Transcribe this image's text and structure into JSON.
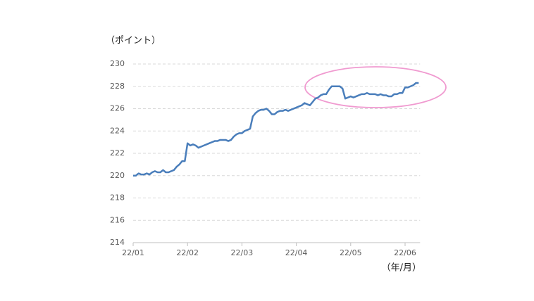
{
  "chart_data": {
    "type": "line",
    "y_label": "（ポイント）",
    "x_label": "（年/月）",
    "categories": [
      "22/01",
      null,
      null,
      null,
      null,
      null,
      null,
      null,
      null,
      null,
      null,
      null,
      null,
      null,
      null,
      null,
      null,
      null,
      null,
      null,
      "22/02",
      null,
      null,
      null,
      null,
      null,
      null,
      null,
      null,
      null,
      null,
      null,
      null,
      null,
      null,
      null,
      null,
      null,
      null,
      null,
      "22/03",
      null,
      null,
      null,
      null,
      null,
      null,
      null,
      null,
      null,
      null,
      null,
      null,
      null,
      null,
      null,
      null,
      null,
      null,
      null,
      "22/04",
      null,
      null,
      null,
      null,
      null,
      null,
      null,
      null,
      null,
      null,
      null,
      null,
      null,
      null,
      null,
      null,
      null,
      null,
      null,
      "22/05",
      null,
      null,
      null,
      null,
      null,
      null,
      null,
      null,
      null,
      null,
      null,
      null,
      null,
      null,
      null,
      null,
      null,
      null,
      null,
      "22/06",
      null,
      null,
      null,
      null,
      null
    ],
    "series": [
      {
        "color": "#4a7ebb",
        "values": [
          220.0,
          220.0,
          220.2,
          220.1,
          220.1,
          220.2,
          220.1,
          220.3,
          220.4,
          220.3,
          220.3,
          220.5,
          220.3,
          220.3,
          220.4,
          220.5,
          220.8,
          221.0,
          221.3,
          221.3,
          222.9,
          222.7,
          222.8,
          222.7,
          222.5,
          222.6,
          222.7,
          222.8,
          222.9,
          223.0,
          223.1,
          223.1,
          223.2,
          223.2,
          223.2,
          223.1,
          223.2,
          223.5,
          223.7,
          223.8,
          223.8,
          224.0,
          224.1,
          224.2,
          225.3,
          225.6,
          225.8,
          225.9,
          225.9,
          226.0,
          225.8,
          225.5,
          225.5,
          225.7,
          225.8,
          225.8,
          225.9,
          225.8,
          225.9,
          226.0,
          226.1,
          226.2,
          226.3,
          226.5,
          226.4,
          226.3,
          226.6,
          226.9,
          227.0,
          227.2,
          227.3,
          227.3,
          227.7,
          228.0,
          228.0,
          228.0,
          228.0,
          227.8,
          226.9,
          227.0,
          227.1,
          227.0,
          227.1,
          227.2,
          227.3,
          227.3,
          227.4,
          227.3,
          227.3,
          227.3,
          227.2,
          227.3,
          227.2,
          227.2,
          227.1,
          227.1,
          227.3,
          227.3,
          227.4,
          227.4,
          227.9,
          227.9,
          228.0,
          228.1,
          228.3,
          228.3
        ]
      }
    ],
    "ylim": [
      214,
      230
    ],
    "yticks": [
      214,
      216,
      218,
      220,
      222,
      224,
      226,
      228,
      230
    ],
    "grid": true
  }
}
